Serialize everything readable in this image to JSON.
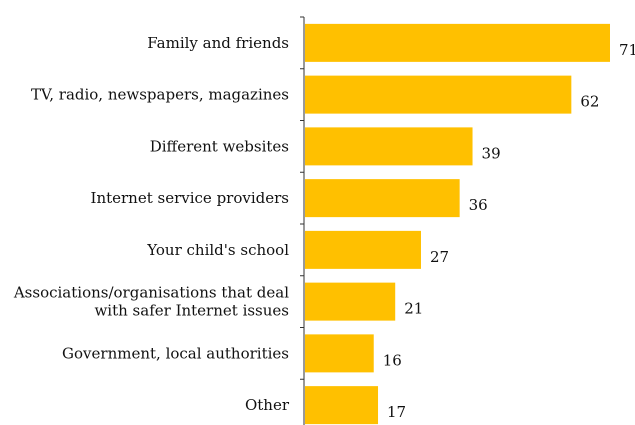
{
  "chart_data": {
    "type": "bar",
    "orientation": "horizontal",
    "title": "",
    "xlabel": "",
    "ylabel": "",
    "categories": [
      "Family and friends",
      "TV, radio, newspapers, magazines",
      "Different websites",
      "Internet service providers",
      "Your child's school",
      "Associations/organisations that deal\nwith safer Internet issues",
      "Government, local authorities",
      "Other"
    ],
    "values": [
      71,
      62,
      39,
      36,
      27,
      21,
      16,
      17
    ],
    "xlim": [
      0,
      71
    ],
    "grid": false,
    "legend": "none",
    "bar_color": "#FFC000",
    "axis_color": "#333333"
  }
}
